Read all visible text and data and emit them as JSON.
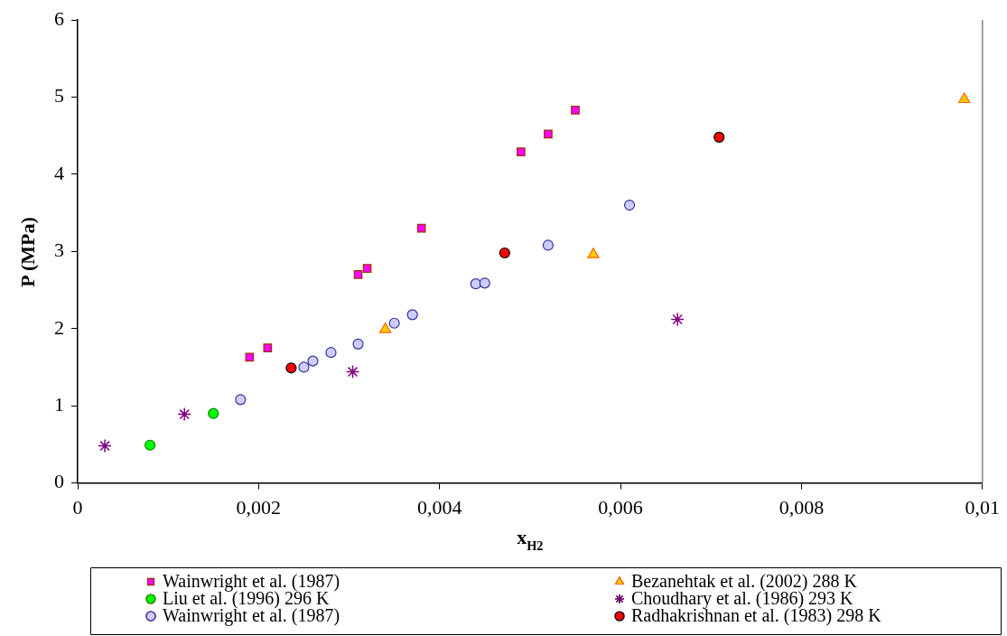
{
  "chart_data": {
    "type": "scatter",
    "xlabel": "x$_{H2}$",
    "ylabel": "P (MPa)",
    "xlim": [
      0,
      0.01
    ],
    "xticks": [
      {
        "value": 0,
        "label": "0"
      },
      {
        "value": 0.002,
        "label": "0,002"
      },
      {
        "value": 0.004,
        "label": "0,004"
      },
      {
        "value": 0.006,
        "label": "0,006"
      },
      {
        "value": 0.008,
        "label": "0,008"
      },
      {
        "value": 0.01,
        "label": "0,01"
      }
    ],
    "ylim": [
      0,
      6
    ],
    "yticks": [
      0,
      1,
      2,
      3,
      4,
      5,
      6
    ],
    "grid": false,
    "legend": "bottom",
    "series": [
      {
        "name": "Wainwright et al. (1987)",
        "color": "#ff00ff",
        "marker": "square",
        "x": [
          0.0019,
          0.0021,
          0.0031,
          0.0032,
          0.0038,
          0.0049,
          0.0052,
          0.0055
        ],
        "values": [
          1.63,
          1.75,
          2.7,
          2.78,
          3.3,
          4.29,
          4.52,
          4.83
        ]
      },
      {
        "name": "Bezanehtak et al. (2002) 288 K",
        "color": "#ffcc00",
        "marker": "triangle",
        "x": [
          0.0034,
          0.0057,
          0.0098
        ],
        "values": [
          1.99,
          2.96,
          4.97
        ]
      },
      {
        "name": "Liu et al. (1996) 296 K",
        "color": "#00ff00",
        "marker": "circle",
        "x": [
          0.0008,
          0.0015
        ],
        "values": [
          0.49,
          0.9
        ]
      },
      {
        "name": "Choudhary et al. (1986) 293 K",
        "color": "#800080",
        "marker": "cross",
        "x": [
          0.0003,
          0.00118,
          0.00304,
          0.00663
        ],
        "values": [
          0.48,
          0.89,
          1.44,
          2.12
        ]
      },
      {
        "name": "Wainwright et al. (1987)",
        "color": "#ccccff",
        "marker": "circle",
        "x": [
          0.0018,
          0.0025,
          0.0026,
          0.0028,
          0.0031,
          0.0035,
          0.0037,
          0.0044,
          0.0045,
          0.0052,
          0.0061
        ],
        "values": [
          1.08,
          1.5,
          1.58,
          1.69,
          1.8,
          2.07,
          2.18,
          2.58,
          2.59,
          3.08,
          3.6
        ]
      },
      {
        "name": "Radhakrishnan et al. (1983) 298 K",
        "color": "#ff0000",
        "marker": "circle",
        "x": [
          0.00236,
          0.00472,
          0.00709
        ],
        "values": [
          1.49,
          2.98,
          4.48
        ]
      }
    ]
  }
}
